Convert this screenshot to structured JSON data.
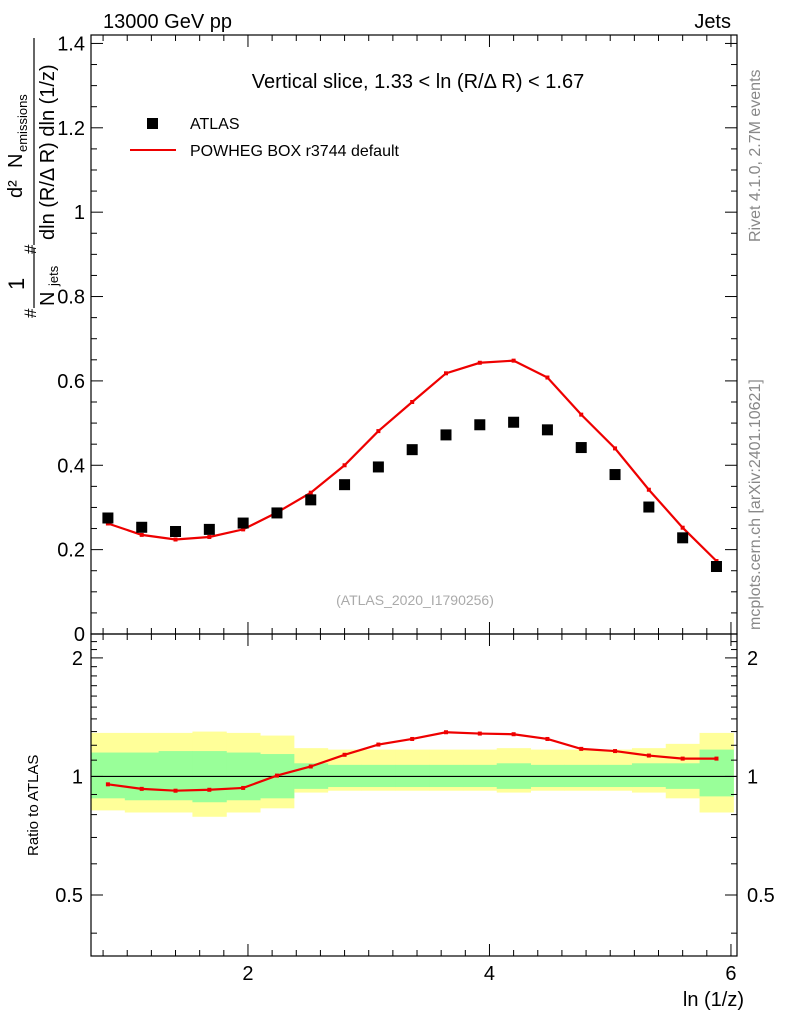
{
  "header": {
    "energy_label": "13000 GeV pp",
    "category_label": "Jets"
  },
  "side_text": {
    "rivet": "Rivet 4.1.0,  2.7M events",
    "source": "mcplots.cern.ch [arXiv:2401.10621]"
  },
  "watermark": "(ATLAS_2020_I1790256)",
  "colors": {
    "data": "#000000",
    "mc": "#ee0000",
    "band_outer": "#ffff99",
    "band_inner": "#99ff99"
  },
  "chart_data": [
    {
      "type": "scatter",
      "title": "Vertical slice, 1.33 < ln (R/Δ R) < 1.67",
      "ylabel": "1/N_jets d²N_emissions / dln(R/ΔR) dln(1/z)",
      "ylabel_parts": {
        "prefix": "#",
        "one": "1",
        "njets": "N",
        "njets_sub": "jets",
        "num_prefix": "#",
        "num_d2": "d²",
        "num_N": "N",
        "num_sub": "emissions",
        "den": "dln (R/Δ R) dln (1/z)"
      },
      "xlabel": "ln (1/z)",
      "xlim": [
        0.7,
        6.05
      ],
      "ylim": [
        0,
        1.42
      ],
      "yticks": [
        0,
        0.2,
        0.4,
        0.6,
        0.8,
        1,
        1.2,
        1.4
      ],
      "ytick_labels": [
        "0",
        "0.2",
        "0.4",
        "0.6",
        "0.8",
        "1",
        "1.2",
        "1.4"
      ],
      "legend": {
        "position": "top-left",
        "entries": [
          "ATLAS",
          "POWHEG BOX r3744 default"
        ]
      },
      "x": [
        0.84,
        1.12,
        1.4,
        1.68,
        1.96,
        2.24,
        2.52,
        2.8,
        3.08,
        3.36,
        3.64,
        3.92,
        4.2,
        4.48,
        4.76,
        5.04,
        5.32,
        5.6,
        5.88
      ],
      "series": [
        {
          "name": "ATLAS",
          "values": [
            0.275,
            0.253,
            0.243,
            0.248,
            0.263,
            0.287,
            0.318,
            0.354,
            0.396,
            0.437,
            0.472,
            0.496,
            0.502,
            0.484,
            0.442,
            0.378,
            0.301,
            0.228,
            0.16
          ]
        },
        {
          "name": "POWHEG BOX r3744 default",
          "values": [
            0.262,
            0.235,
            0.224,
            0.23,
            0.248,
            0.288,
            0.335,
            0.4,
            0.481,
            0.55,
            0.618,
            0.643,
            0.648,
            0.608,
            0.52,
            0.44,
            0.342,
            0.252,
            0.173
          ]
        }
      ]
    },
    {
      "type": "line",
      "ylabel": "Ratio to ATLAS",
      "xlabel": "ln (1/z)",
      "xlim": [
        0.7,
        6.05
      ],
      "ylim": [
        0.35,
        2.3
      ],
      "yticks": [
        0.5,
        1,
        2
      ],
      "ytick_labels": [
        "0.5",
        "1",
        "2"
      ],
      "xticks": [
        2,
        4,
        6
      ],
      "xtick_labels": [
        "2",
        "4",
        "6"
      ],
      "edges": [
        0.7,
        0.98,
        1.26,
        1.54,
        1.82,
        2.1,
        2.38,
        2.66,
        2.94,
        3.22,
        3.5,
        3.78,
        4.06,
        4.34,
        4.62,
        4.9,
        5.18,
        5.46,
        5.74,
        6.02
      ],
      "band_inner": [
        [
          0.88,
          1.15
        ],
        [
          0.87,
          1.15
        ],
        [
          0.87,
          1.16
        ],
        [
          0.86,
          1.16
        ],
        [
          0.87,
          1.15
        ],
        [
          0.88,
          1.14
        ],
        [
          0.93,
          1.08
        ],
        [
          0.94,
          1.07
        ],
        [
          0.94,
          1.07
        ],
        [
          0.94,
          1.07
        ],
        [
          0.94,
          1.07
        ],
        [
          0.94,
          1.07
        ],
        [
          0.93,
          1.08
        ],
        [
          0.94,
          1.07
        ],
        [
          0.94,
          1.07
        ],
        [
          0.94,
          1.07
        ],
        [
          0.94,
          1.08
        ],
        [
          0.93,
          1.08
        ],
        [
          0.89,
          1.17
        ]
      ],
      "band_outer": [
        [
          0.82,
          1.29
        ],
        [
          0.81,
          1.29
        ],
        [
          0.81,
          1.29
        ],
        [
          0.79,
          1.3
        ],
        [
          0.81,
          1.29
        ],
        [
          0.83,
          1.27
        ],
        [
          0.91,
          1.18
        ],
        [
          0.92,
          1.17
        ],
        [
          0.92,
          1.17
        ],
        [
          0.92,
          1.17
        ],
        [
          0.92,
          1.17
        ],
        [
          0.92,
          1.17
        ],
        [
          0.91,
          1.18
        ],
        [
          0.92,
          1.17
        ],
        [
          0.92,
          1.17
        ],
        [
          0.92,
          1.17
        ],
        [
          0.91,
          1.18
        ],
        [
          0.88,
          1.21
        ],
        [
          0.81,
          1.29
        ]
      ],
      "x": [
        0.84,
        1.12,
        1.4,
        1.68,
        1.96,
        2.24,
        2.52,
        2.8,
        3.08,
        3.36,
        3.64,
        3.92,
        4.2,
        4.48,
        4.76,
        5.04,
        5.32,
        5.6,
        5.88
      ],
      "series": [
        {
          "name": "POWHEG BOX r3744 default / ATLAS",
          "values": [
            0.955,
            0.93,
            0.92,
            0.925,
            0.935,
            1.005,
            1.06,
            1.135,
            1.205,
            1.245,
            1.295,
            1.285,
            1.28,
            1.245,
            1.175,
            1.16,
            1.13,
            1.11,
            1.11
          ]
        }
      ]
    }
  ]
}
